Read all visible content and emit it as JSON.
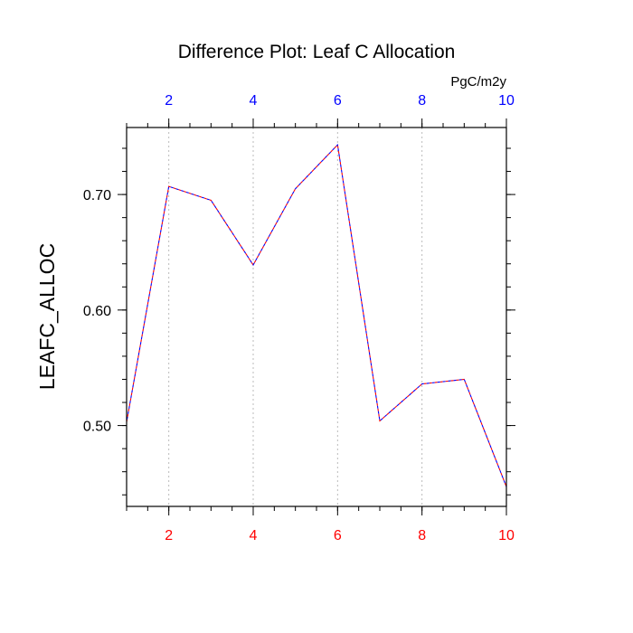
{
  "chart_data": {
    "type": "line",
    "title": "Difference Plot: Leaf C Allocation",
    "ylabel": "LEAFC_ALLOC",
    "top_axis_unit": "PgC/m2y",
    "x": [
      1,
      2,
      3,
      4,
      5,
      6,
      7,
      8,
      9,
      10
    ],
    "series": [
      {
        "values": [
          0.503,
          0.707,
          0.695,
          0.639,
          0.705,
          0.743,
          0.504,
          0.536,
          0.54,
          0.447
        ]
      }
    ],
    "xlim": [
      1,
      10
    ],
    "ylim": [
      0.43,
      0.758
    ],
    "bottom_ticks": [
      {
        "value": 2,
        "label": "2"
      },
      {
        "value": 4,
        "label": "4"
      },
      {
        "value": 6,
        "label": "6"
      },
      {
        "value": 8,
        "label": "8"
      },
      {
        "value": 10,
        "label": "10"
      }
    ],
    "top_ticks": [
      {
        "value": 2,
        "label": "2"
      },
      {
        "value": 4,
        "label": "4"
      },
      {
        "value": 6,
        "label": "6"
      },
      {
        "value": 8,
        "label": "8"
      },
      {
        "value": 10,
        "label": "10"
      }
    ],
    "y_ticks": [
      {
        "value": 0.5,
        "label": "0.50"
      },
      {
        "value": 0.6,
        "label": "0.60"
      },
      {
        "value": 0.7,
        "label": "0.70"
      }
    ],
    "y_minor_step": 0.02,
    "x_minor_step": 0.5,
    "vertical_grid": true,
    "grid_style": "dotted",
    "colors": {
      "bottom_tick_labels": "#ff0000",
      "top_tick_labels": "#0000ff",
      "series_line_a": "#ff0000",
      "series_line_b": "#0000ff",
      "grid": "#bbbbbb",
      "axes": "#000000"
    }
  }
}
